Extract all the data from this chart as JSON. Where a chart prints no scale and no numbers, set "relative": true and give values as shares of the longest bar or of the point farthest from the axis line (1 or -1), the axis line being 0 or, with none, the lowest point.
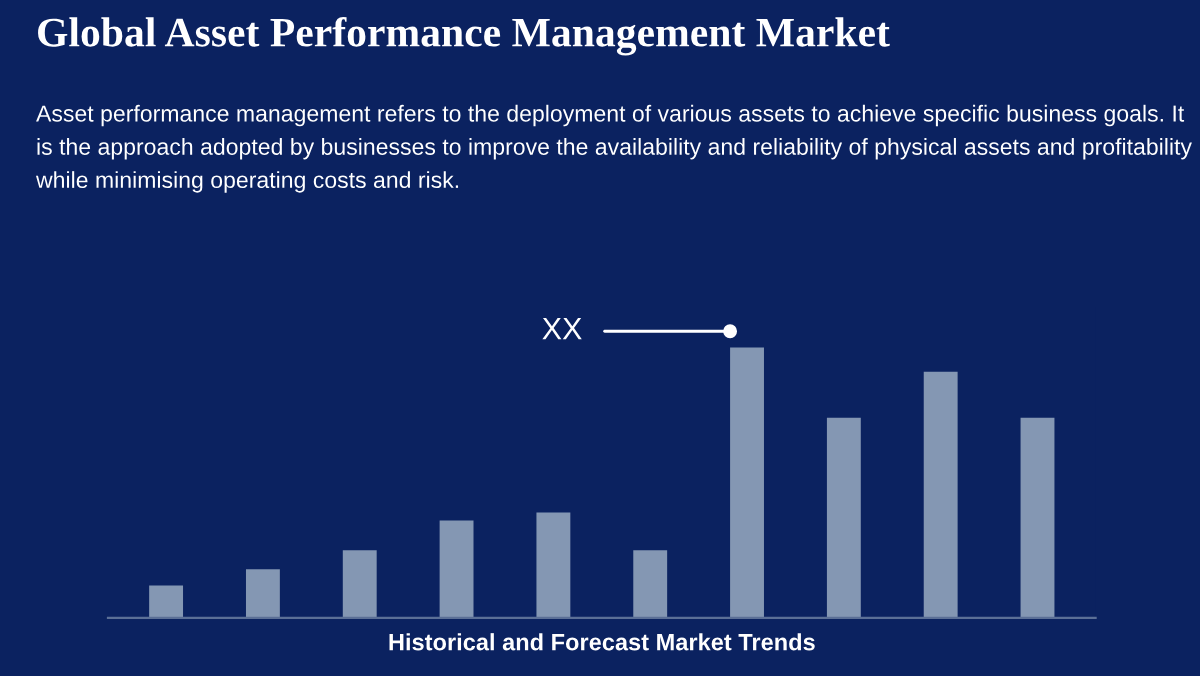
{
  "chart_data": {
    "type": "bar",
    "relative": true,
    "title": "Global Asset Performance Management Market",
    "subtitle": "Asset performance management refers to the deployment of various assets to achieve specific business goals. It is the approach adopted by businesses to improve the availability and reliability of physical assets and profitability while minimising operating costs and risk.",
    "xlabel": "Historical and Forecast Market Trends",
    "categories": [
      null,
      null,
      null,
      null,
      null,
      null,
      null,
      null,
      null,
      null
    ],
    "values": [
      0.12,
      0.18,
      0.25,
      0.36,
      0.39,
      0.25,
      1,
      0.74,
      0.91,
      0.74
    ],
    "color": "#8497b3",
    "annotations": [
      "XX"
    ],
    "grid": false,
    "legend": false
  }
}
